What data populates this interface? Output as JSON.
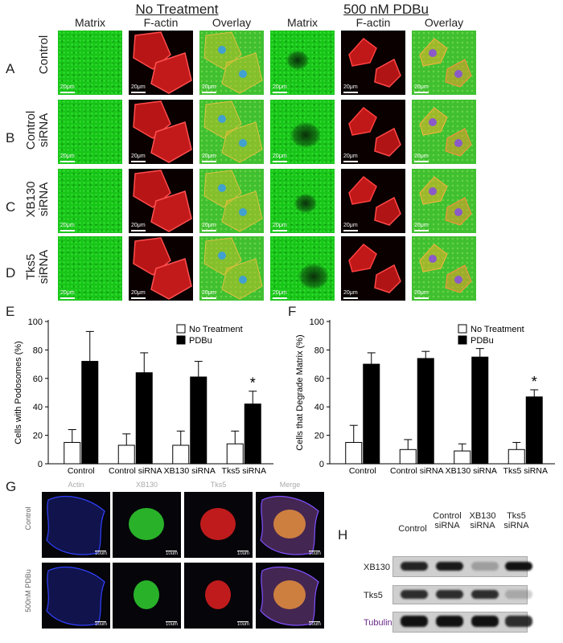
{
  "panel_letters": {
    "A": "A",
    "B": "B",
    "C": "C",
    "D": "D",
    "E": "E",
    "F": "F",
    "G": "G",
    "H": "H"
  },
  "micrograph_grid": {
    "group_no_treatment": "No Treatment",
    "group_pdbu": "500 nM PDBu",
    "columns": [
      "Matrix",
      "F-actin",
      "Overlay",
      "Matrix",
      "F-actin",
      "Overlay"
    ],
    "rows": [
      {
        "letter": "A",
        "label_line1": "Control",
        "label_line2": ""
      },
      {
        "letter": "B",
        "label_line1": "Control",
        "label_line2": "siRNA"
      },
      {
        "letter": "C",
        "label_line1": "XB130",
        "label_line2": "siRNA"
      },
      {
        "letter": "D",
        "label_line1": "Tks5",
        "label_line2": "siRNA"
      }
    ],
    "scale_bar": "20μm"
  },
  "chart_data": [
    {
      "panel": "E",
      "type": "bar",
      "ylabel": "Cells with Podosomes (%)",
      "ylim": [
        0,
        100
      ],
      "yticks": [
        0,
        20,
        40,
        60,
        80,
        100
      ],
      "categories": [
        "Control",
        "Control siRNA",
        "XB130 siRNA",
        "Tks5 siRNA"
      ],
      "series": [
        {
          "name": "No Treatment",
          "values": [
            15,
            13,
            13,
            14
          ],
          "errors": [
            9,
            8,
            10,
            9
          ],
          "color": "#ffffff"
        },
        {
          "name": "PDBu",
          "values": [
            72,
            64,
            61,
            42
          ],
          "errors": [
            21,
            14,
            11,
            9
          ],
          "color": "#000000"
        }
      ],
      "annotations": [
        {
          "category": "Tks5 siRNA",
          "text": "*"
        }
      ],
      "legend_position": "top-right"
    },
    {
      "panel": "F",
      "type": "bar",
      "ylabel": "Cells that Degrade Matrix (%)",
      "ylim": [
        0,
        100
      ],
      "yticks": [
        0,
        20,
        40,
        60,
        80,
        100
      ],
      "categories": [
        "Control",
        "Control siRNA",
        "XB130 siRNA",
        "Tks5 siRNA"
      ],
      "series": [
        {
          "name": "No Treatment",
          "values": [
            15,
            10,
            9,
            10
          ],
          "errors": [
            12,
            7,
            5,
            5
          ],
          "color": "#ffffff"
        },
        {
          "name": "PDBu",
          "values": [
            70,
            74,
            75,
            47
          ],
          "errors": [
            8,
            5,
            6,
            5
          ],
          "color": "#000000"
        }
      ],
      "annotations": [
        {
          "category": "Tks5 siRNA",
          "text": "*"
        }
      ],
      "legend_position": "top-right"
    }
  ],
  "panel_g": {
    "columns": [
      "Actin",
      "XB130",
      "Tks5",
      "Merge"
    ],
    "rows": [
      "Control",
      "500nM PDBu"
    ],
    "scale_bar": "10um"
  },
  "panel_h": {
    "lanes": [
      {
        "line1": "",
        "line2": "Control"
      },
      {
        "line1": "Control",
        "line2": "siRNA"
      },
      {
        "line1": "XB130",
        "line2": "siRNA"
      },
      {
        "line1": "Tks5",
        "line2": "siRNA"
      }
    ],
    "blots": [
      {
        "label": "XB130",
        "intensities": [
          0.9,
          0.95,
          0.25,
          1.0
        ]
      },
      {
        "label": "Tks5",
        "intensities": [
          0.85,
          0.85,
          0.85,
          0.2
        ]
      },
      {
        "label": "Tubulin",
        "intensities": [
          1.0,
          1.0,
          1.0,
          0.85
        ]
      }
    ],
    "tubulin_color": "#6a2a8a"
  }
}
